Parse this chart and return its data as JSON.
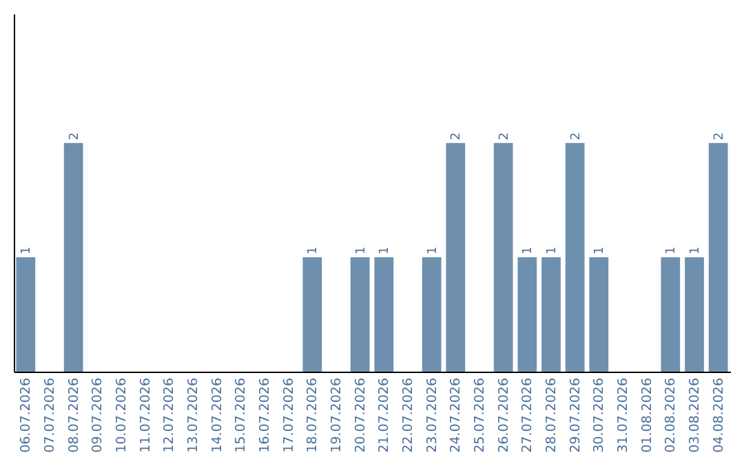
{
  "chart_data": {
    "type": "bar",
    "categories": [
      "06.07.2026",
      "07.07.2026",
      "08.07.2026",
      "09.07.2026",
      "10.07.2026",
      "11.07.2026",
      "12.07.2026",
      "13.07.2026",
      "14.07.2026",
      "15.07.2026",
      "16.07.2026",
      "17.07.2026",
      "18.07.2026",
      "19.07.2026",
      "20.07.2026",
      "21.07.2026",
      "22.07.2026",
      "23.07.2026",
      "24.07.2026",
      "25.07.2026",
      "26.07.2026",
      "27.07.2026",
      "28.07.2026",
      "29.07.2026",
      "30.07.2026",
      "31.07.2026",
      "01.08.2026",
      "02.08.2026",
      "03.08.2026",
      "04.08.2026"
    ],
    "values": [
      1,
      0,
      2,
      0,
      0,
      0,
      0,
      0,
      0,
      0,
      0,
      0,
      1,
      0,
      1,
      1,
      0,
      1,
      2,
      0,
      2,
      1,
      1,
      2,
      1,
      0,
      0,
      1,
      1,
      2
    ],
    "value_labels": [
      "1",
      null,
      "2",
      null,
      null,
      null,
      null,
      null,
      null,
      null,
      null,
      null,
      "1",
      null,
      "1",
      "1",
      null,
      "1",
      "2",
      null,
      "2",
      "1",
      "1",
      "2",
      "1",
      null,
      null,
      "1",
      "1",
      "2"
    ],
    "color": "#6e8fae",
    "ylim": [
      0,
      3.13
    ],
    "tick_labels": "x"
  }
}
